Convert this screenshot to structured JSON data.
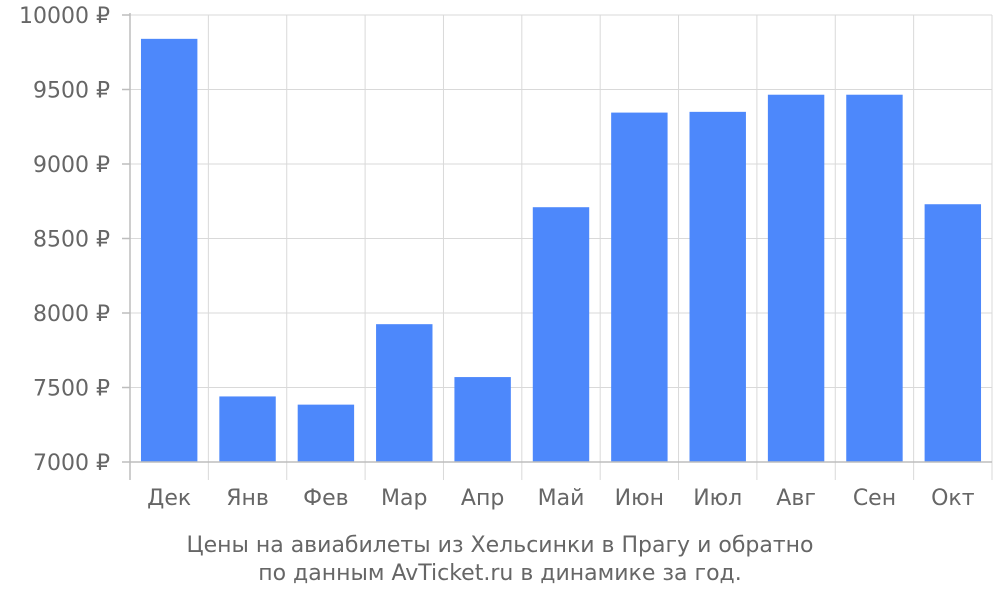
{
  "chart_data": {
    "type": "bar",
    "categories": [
      "Дек",
      "Янв",
      "Фев",
      "Мар",
      "Апр",
      "Май",
      "Июн",
      "Июл",
      "Авг",
      "Сен",
      "Окт"
    ],
    "values": [
      9840,
      7440,
      7385,
      7925,
      7570,
      8710,
      9345,
      9350,
      9465,
      9465,
      8730
    ],
    "ylim": [
      7000,
      10000
    ],
    "yticks": [
      7000,
      7500,
      8000,
      8500,
      9000,
      9500,
      10000
    ],
    "ytick_labels": [
      "7000 ₽",
      "7500 ₽",
      "8000 ₽",
      "8500 ₽",
      "9000 ₽",
      "9500 ₽",
      "10000 ₽"
    ],
    "bar_color": "#4d88fb",
    "grid": true
  },
  "caption": {
    "line1": "Цены на авиабилеты из Хельсинки в Прагу и обратно",
    "line2": "по данным AvTicket.ru в динамике за год."
  }
}
